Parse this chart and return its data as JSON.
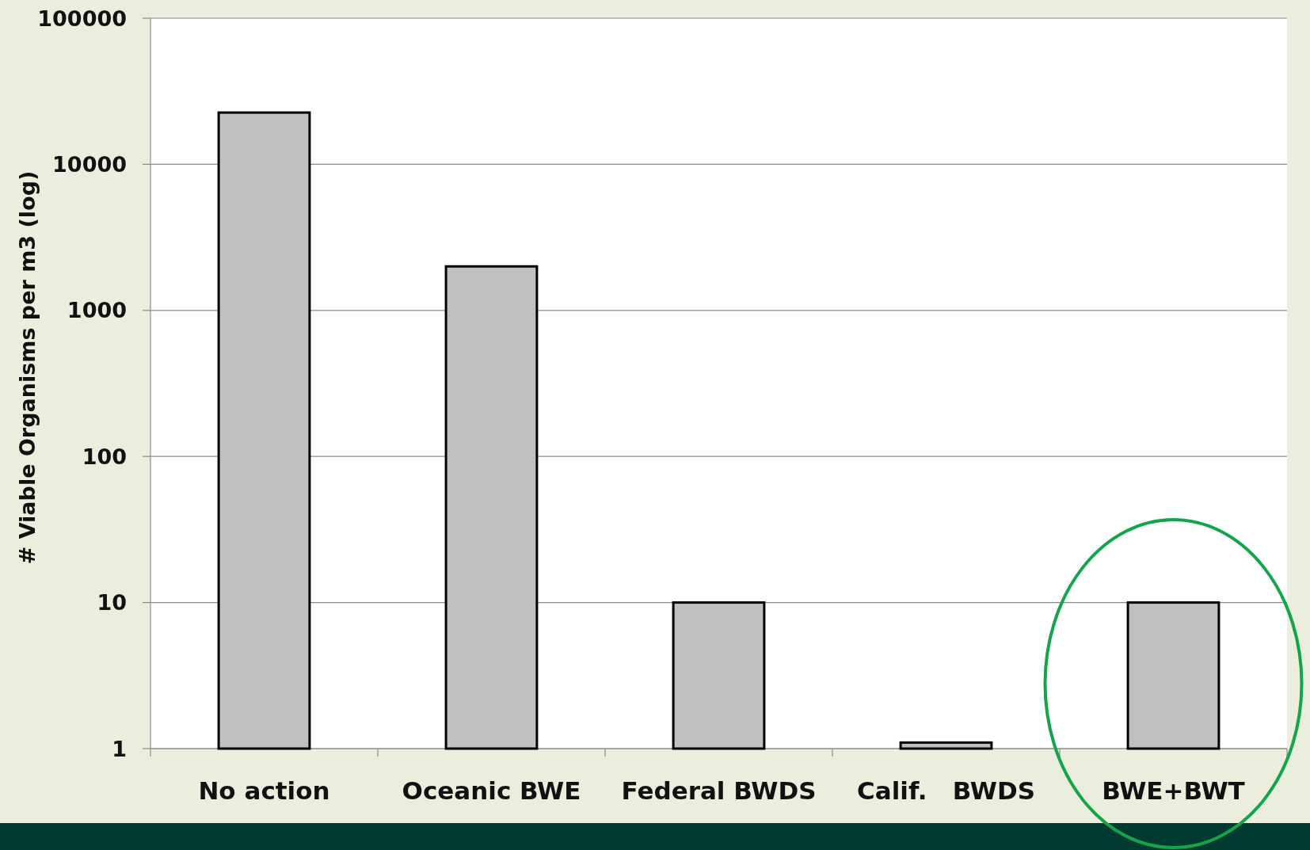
{
  "chart_data": {
    "type": "bar",
    "ylabel": "# Viable Organisms per m3 (log)",
    "categories": [
      "No action",
      "Oceanic BWE",
      "Federal BWDS",
      "Calif.   BWDS",
      "BWE+BWT"
    ],
    "values": [
      22600,
      2000,
      10,
      1.1,
      10
    ],
    "color": "#c0c0c0",
    "log": true,
    "ylim": [
      1,
      100000
    ],
    "yticks": [
      1,
      10,
      100,
      1000,
      10000,
      100000
    ],
    "grid": "y"
  }
}
